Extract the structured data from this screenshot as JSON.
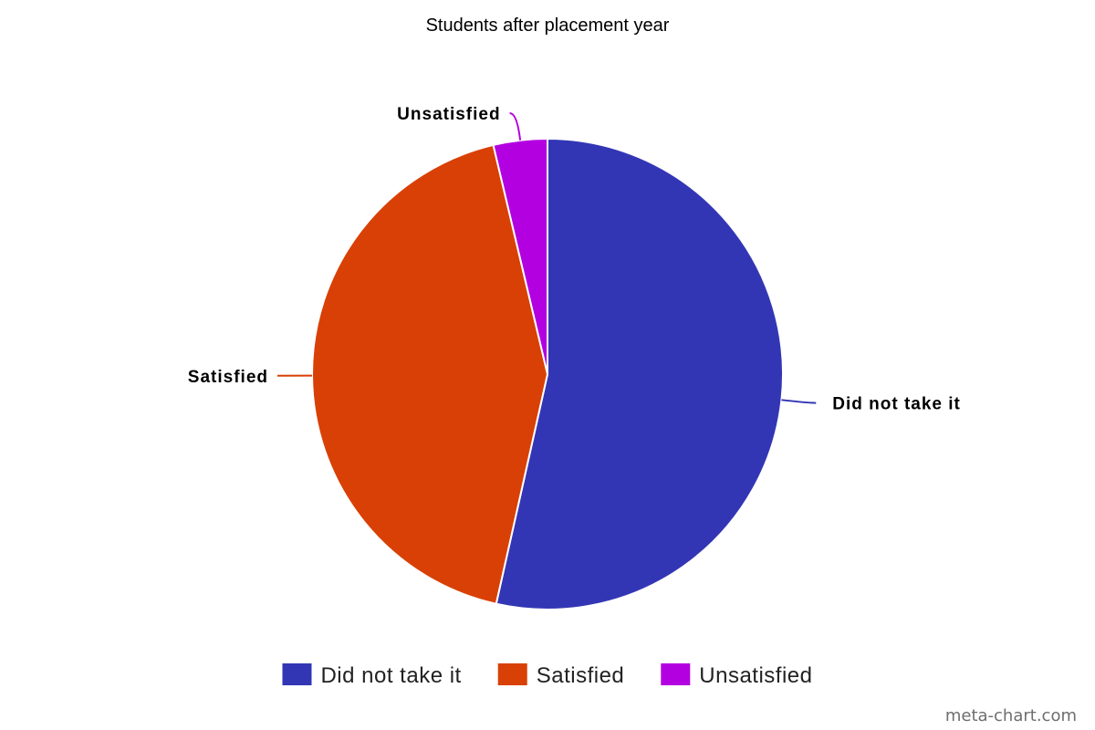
{
  "chart_data": {
    "type": "pie",
    "title": "Students after placement year",
    "categories": [
      "Did not take it",
      "Satisfied",
      "Unsatisfied"
    ],
    "values": [
      53.5,
      42.8,
      3.7
    ],
    "colors": [
      "#3336b4",
      "#d94005",
      "#b300e0"
    ],
    "start_angle_deg": 0,
    "direction": "clockwise",
    "legend_position": "bottom",
    "show_slice_labels": true
  },
  "watermark": "meta-chart.com"
}
